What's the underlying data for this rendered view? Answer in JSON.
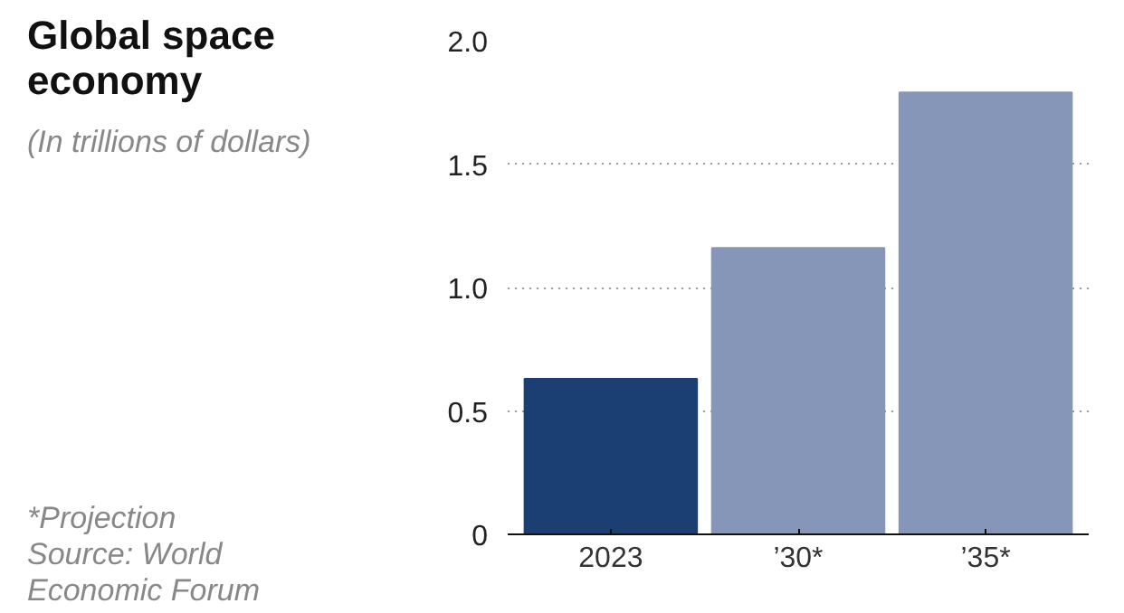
{
  "chart_data": {
    "type": "bar",
    "title": "Global space economy",
    "subtitle": "(In trillions of dollars)",
    "categories": [
      "2023",
      "’30*",
      "’35*"
    ],
    "values": [
      0.63,
      1.16,
      1.79
    ],
    "colors": [
      "#1b3f72",
      "#8696b9",
      "#8696b9"
    ],
    "ylim": [
      0,
      2.0
    ],
    "yticks": [
      0,
      0.5,
      {
        "value": 1,
        "label": "1.0"
      },
      1.5,
      {
        "value": 2,
        "label": "2.0"
      }
    ],
    "grid": "y",
    "annotations": [
      "*Projection",
      "Source: World Economic Forum"
    ]
  }
}
